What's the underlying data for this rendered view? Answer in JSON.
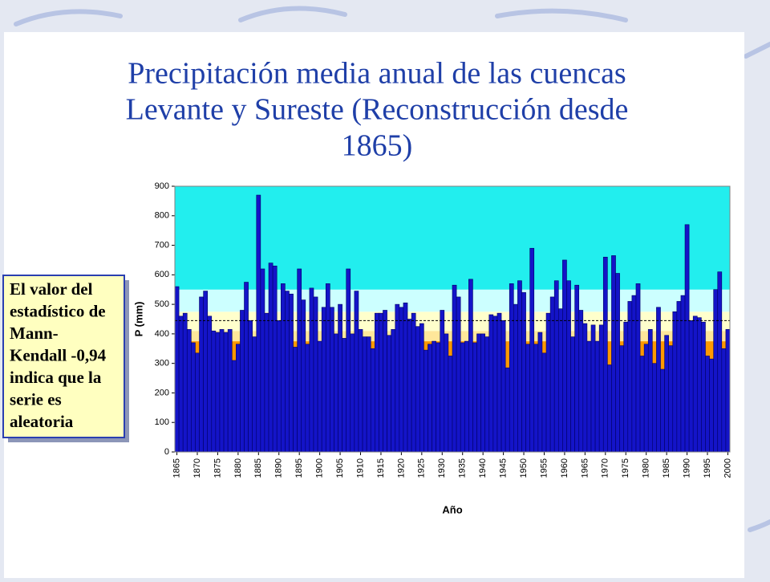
{
  "chart_data": {
    "type": "bar",
    "title": [
      "Precipitación media anual de las cuencas",
      "Levante y Sureste (Reconstrucción desde",
      "1865)"
    ],
    "note": [
      "El valor del",
      "estadístico de",
      "Mann-",
      "Kendall -0,94",
      "indica que la",
      "serie es",
      "aleatoria"
    ],
    "x_label": "Año",
    "y_label": "P (mm)",
    "color": "#1414c8",
    "categories": [
      "1865",
      null,
      null,
      null,
      null,
      "1870",
      null,
      null,
      null,
      null,
      "1875",
      null,
      null,
      null,
      null,
      "1880",
      null,
      null,
      null,
      null,
      "1885",
      null,
      null,
      null,
      null,
      "1890",
      null,
      null,
      null,
      null,
      "1895",
      null,
      null,
      null,
      null,
      "1900",
      null,
      null,
      null,
      null,
      "1905",
      null,
      null,
      null,
      null,
      "1910",
      null,
      null,
      null,
      null,
      "1915",
      null,
      null,
      null,
      null,
      "1920",
      null,
      null,
      null,
      null,
      "1925",
      null,
      null,
      null,
      null,
      "1930",
      null,
      null,
      null,
      null,
      "1935",
      null,
      null,
      null,
      null,
      "1940",
      null,
      null,
      null,
      null,
      "1945",
      null,
      null,
      null,
      null,
      "1950",
      null,
      null,
      null,
      null,
      "1955",
      null,
      null,
      null,
      null,
      "1960",
      null,
      null,
      null,
      null,
      "1965",
      null,
      null,
      null,
      null,
      "1970",
      null,
      null,
      null,
      null,
      "1975",
      null,
      null,
      null,
      null,
      "1980",
      null,
      null,
      null,
      null,
      "1985",
      null,
      null,
      null,
      null,
      "1990",
      null,
      null,
      null,
      null,
      "1995",
      null,
      null,
      null,
      null,
      "2000"
    ],
    "values": [
      560,
      460,
      470,
      415,
      370,
      335,
      525,
      545,
      460,
      410,
      405,
      415,
      405,
      415,
      310,
      365,
      480,
      575,
      445,
      390,
      870,
      620,
      470,
      640,
      630,
      445,
      570,
      545,
      535,
      355,
      620,
      515,
      365,
      555,
      525,
      375,
      490,
      570,
      490,
      400,
      500,
      385,
      620,
      400,
      545,
      415,
      390,
      390,
      350,
      470,
      470,
      480,
      395,
      415,
      500,
      490,
      505,
      450,
      470,
      425,
      435,
      345,
      365,
      375,
      370,
      480,
      400,
      325,
      565,
      525,
      370,
      375,
      585,
      370,
      400,
      400,
      390,
      465,
      460,
      470,
      445,
      285,
      570,
      500,
      580,
      540,
      365,
      690,
      365,
      405,
      335,
      470,
      525,
      580,
      485,
      650,
      580,
      390,
      565,
      480,
      435,
      375,
      430,
      375,
      430,
      660,
      295,
      665,
      605,
      360,
      440,
      510,
      530,
      570,
      325,
      365,
      415,
      300,
      490,
      280,
      395,
      360,
      475,
      510,
      530,
      770,
      445,
      460,
      455,
      440,
      325,
      315,
      550,
      610,
      350,
      415
    ],
    "ylim": [
      0,
      900
    ],
    "yticks": [
      0,
      100,
      200,
      300,
      400,
      500,
      600,
      700,
      800,
      900
    ],
    "bands": [
      {
        "from": 0,
        "to": 375,
        "color": "#ff9900"
      },
      {
        "from": 375,
        "to": 410,
        "color": "#ffe79a"
      },
      {
        "from": 410,
        "to": 475,
        "color": "#ffffcc"
      },
      {
        "from": 475,
        "to": 550,
        "color": "#ccffff"
      },
      {
        "from": 550,
        "to": 900,
        "color": "#22eeee"
      }
    ],
    "mean_line": 445
  }
}
